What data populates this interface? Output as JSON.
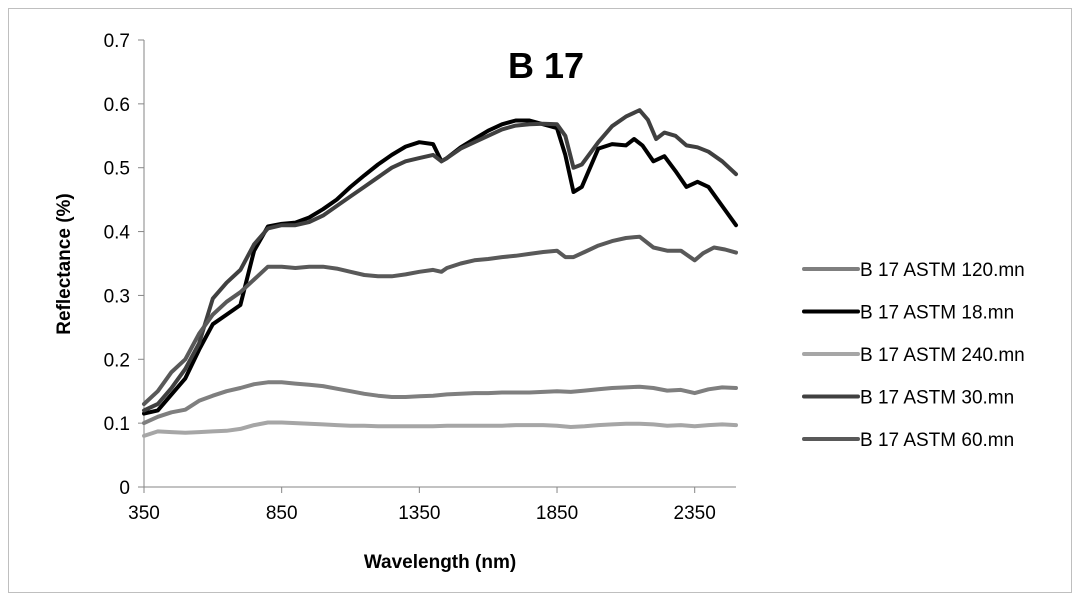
{
  "chart_data": {
    "type": "line",
    "title": "B 17",
    "xlabel": "Wavelength (nm)",
    "ylabel": "Reflectance (%)",
    "xlim": [
      350,
      2500
    ],
    "ylim": [
      0,
      0.7
    ],
    "x_ticks": [
      350,
      850,
      1350,
      1850,
      2350
    ],
    "y_ticks": [
      0,
      0.1,
      0.2,
      0.3,
      0.4,
      0.5,
      0.6,
      0.7
    ],
    "y_tick_labels": [
      "0",
      "0.1",
      "0.2",
      "0.3",
      "0.4",
      "0.5",
      "0.6",
      "0.7"
    ],
    "grid": false,
    "legend_position": "right",
    "series": [
      {
        "name": "B 17 ASTM 120.mn",
        "color": "#7f7f7f",
        "points": [
          [
            350,
            0.1
          ],
          [
            400,
            0.11
          ],
          [
            450,
            0.117
          ],
          [
            500,
            0.121
          ],
          [
            550,
            0.135
          ],
          [
            600,
            0.143
          ],
          [
            650,
            0.15
          ],
          [
            700,
            0.155
          ],
          [
            750,
            0.161
          ],
          [
            800,
            0.164
          ],
          [
            850,
            0.164
          ],
          [
            900,
            0.162
          ],
          [
            950,
            0.16
          ],
          [
            1000,
            0.158
          ],
          [
            1050,
            0.154
          ],
          [
            1100,
            0.15
          ],
          [
            1150,
            0.146
          ],
          [
            1200,
            0.143
          ],
          [
            1250,
            0.141
          ],
          [
            1300,
            0.141
          ],
          [
            1350,
            0.142
          ],
          [
            1400,
            0.143
          ],
          [
            1450,
            0.145
          ],
          [
            1500,
            0.146
          ],
          [
            1550,
            0.147
          ],
          [
            1600,
            0.147
          ],
          [
            1650,
            0.148
          ],
          [
            1700,
            0.148
          ],
          [
            1750,
            0.148
          ],
          [
            1800,
            0.149
          ],
          [
            1850,
            0.15
          ],
          [
            1900,
            0.149
          ],
          [
            1950,
            0.151
          ],
          [
            2000,
            0.153
          ],
          [
            2050,
            0.155
          ],
          [
            2100,
            0.156
          ],
          [
            2150,
            0.157
          ],
          [
            2200,
            0.155
          ],
          [
            2250,
            0.151
          ],
          [
            2300,
            0.152
          ],
          [
            2350,
            0.147
          ],
          [
            2400,
            0.153
          ],
          [
            2450,
            0.156
          ],
          [
            2500,
            0.155
          ]
        ]
      },
      {
        "name": "B 17 ASTM 18.mn",
        "color": "#000000",
        "points": [
          [
            350,
            0.115
          ],
          [
            400,
            0.12
          ],
          [
            450,
            0.145
          ],
          [
            500,
            0.17
          ],
          [
            550,
            0.215
          ],
          [
            600,
            0.255
          ],
          [
            650,
            0.27
          ],
          [
            700,
            0.285
          ],
          [
            750,
            0.37
          ],
          [
            800,
            0.408
          ],
          [
            850,
            0.412
          ],
          [
            900,
            0.414
          ],
          [
            950,
            0.422
          ],
          [
            1000,
            0.435
          ],
          [
            1050,
            0.45
          ],
          [
            1100,
            0.47
          ],
          [
            1150,
            0.488
          ],
          [
            1200,
            0.505
          ],
          [
            1250,
            0.52
          ],
          [
            1300,
            0.533
          ],
          [
            1350,
            0.54
          ],
          [
            1400,
            0.537
          ],
          [
            1430,
            0.51
          ],
          [
            1450,
            0.515
          ],
          [
            1500,
            0.532
          ],
          [
            1550,
            0.545
          ],
          [
            1600,
            0.558
          ],
          [
            1650,
            0.568
          ],
          [
            1700,
            0.574
          ],
          [
            1750,
            0.574
          ],
          [
            1800,
            0.568
          ],
          [
            1850,
            0.562
          ],
          [
            1880,
            0.52
          ],
          [
            1910,
            0.462
          ],
          [
            1940,
            0.47
          ],
          [
            2000,
            0.53
          ],
          [
            2050,
            0.537
          ],
          [
            2100,
            0.535
          ],
          [
            2130,
            0.545
          ],
          [
            2160,
            0.535
          ],
          [
            2200,
            0.51
          ],
          [
            2240,
            0.518
          ],
          [
            2280,
            0.495
          ],
          [
            2320,
            0.47
          ],
          [
            2360,
            0.478
          ],
          [
            2400,
            0.47
          ],
          [
            2450,
            0.44
          ],
          [
            2500,
            0.41
          ]
        ]
      },
      {
        "name": "B 17 ASTM 240.mn",
        "color": "#a6a6a6",
        "points": [
          [
            350,
            0.08
          ],
          [
            400,
            0.087
          ],
          [
            450,
            0.086
          ],
          [
            500,
            0.085
          ],
          [
            550,
            0.086
          ],
          [
            600,
            0.087
          ],
          [
            650,
            0.088
          ],
          [
            700,
            0.091
          ],
          [
            750,
            0.097
          ],
          [
            800,
            0.101
          ],
          [
            850,
            0.101
          ],
          [
            900,
            0.1
          ],
          [
            950,
            0.099
          ],
          [
            1000,
            0.098
          ],
          [
            1050,
            0.097
          ],
          [
            1100,
            0.096
          ],
          [
            1150,
            0.096
          ],
          [
            1200,
            0.095
          ],
          [
            1250,
            0.095
          ],
          [
            1300,
            0.095
          ],
          [
            1350,
            0.095
          ],
          [
            1400,
            0.095
          ],
          [
            1450,
            0.096
          ],
          [
            1500,
            0.096
          ],
          [
            1550,
            0.096
          ],
          [
            1600,
            0.096
          ],
          [
            1650,
            0.096
          ],
          [
            1700,
            0.097
          ],
          [
            1750,
            0.097
          ],
          [
            1800,
            0.097
          ],
          [
            1850,
            0.096
          ],
          [
            1900,
            0.094
          ],
          [
            1950,
            0.095
          ],
          [
            2000,
            0.097
          ],
          [
            2050,
            0.098
          ],
          [
            2100,
            0.099
          ],
          [
            2150,
            0.099
          ],
          [
            2200,
            0.098
          ],
          [
            2250,
            0.096
          ],
          [
            2300,
            0.097
          ],
          [
            2350,
            0.095
          ],
          [
            2400,
            0.097
          ],
          [
            2450,
            0.098
          ],
          [
            2500,
            0.097
          ]
        ]
      },
      {
        "name": "B 17 ASTM 30.mn",
        "color": "#404040",
        "points": [
          [
            350,
            0.12
          ],
          [
            400,
            0.13
          ],
          [
            450,
            0.155
          ],
          [
            500,
            0.185
          ],
          [
            550,
            0.225
          ],
          [
            600,
            0.295
          ],
          [
            650,
            0.32
          ],
          [
            700,
            0.34
          ],
          [
            750,
            0.38
          ],
          [
            800,
            0.405
          ],
          [
            850,
            0.41
          ],
          [
            900,
            0.41
          ],
          [
            950,
            0.415
          ],
          [
            1000,
            0.425
          ],
          [
            1050,
            0.44
          ],
          [
            1100,
            0.455
          ],
          [
            1150,
            0.47
          ],
          [
            1200,
            0.485
          ],
          [
            1250,
            0.5
          ],
          [
            1300,
            0.51
          ],
          [
            1350,
            0.515
          ],
          [
            1400,
            0.52
          ],
          [
            1430,
            0.51
          ],
          [
            1450,
            0.515
          ],
          [
            1500,
            0.53
          ],
          [
            1550,
            0.54
          ],
          [
            1600,
            0.55
          ],
          [
            1650,
            0.56
          ],
          [
            1700,
            0.566
          ],
          [
            1750,
            0.568
          ],
          [
            1800,
            0.569
          ],
          [
            1850,
            0.568
          ],
          [
            1880,
            0.55
          ],
          [
            1910,
            0.5
          ],
          [
            1940,
            0.505
          ],
          [
            2000,
            0.54
          ],
          [
            2050,
            0.565
          ],
          [
            2100,
            0.58
          ],
          [
            2150,
            0.59
          ],
          [
            2180,
            0.575
          ],
          [
            2210,
            0.545
          ],
          [
            2240,
            0.555
          ],
          [
            2280,
            0.55
          ],
          [
            2320,
            0.535
          ],
          [
            2360,
            0.532
          ],
          [
            2400,
            0.525
          ],
          [
            2450,
            0.51
          ],
          [
            2500,
            0.49
          ]
        ]
      },
      {
        "name": "B 17 ASTM 60.mn",
        "color": "#595959",
        "points": [
          [
            350,
            0.13
          ],
          [
            400,
            0.15
          ],
          [
            450,
            0.18
          ],
          [
            500,
            0.2
          ],
          [
            550,
            0.24
          ],
          [
            600,
            0.27
          ],
          [
            650,
            0.29
          ],
          [
            700,
            0.305
          ],
          [
            750,
            0.325
          ],
          [
            800,
            0.345
          ],
          [
            850,
            0.345
          ],
          [
            900,
            0.343
          ],
          [
            950,
            0.345
          ],
          [
            1000,
            0.345
          ],
          [
            1050,
            0.342
          ],
          [
            1100,
            0.337
          ],
          [
            1150,
            0.332
          ],
          [
            1200,
            0.33
          ],
          [
            1250,
            0.33
          ],
          [
            1300,
            0.333
          ],
          [
            1350,
            0.337
          ],
          [
            1400,
            0.34
          ],
          [
            1430,
            0.337
          ],
          [
            1450,
            0.343
          ],
          [
            1500,
            0.35
          ],
          [
            1550,
            0.355
          ],
          [
            1600,
            0.357
          ],
          [
            1650,
            0.36
          ],
          [
            1700,
            0.362
          ],
          [
            1750,
            0.365
          ],
          [
            1800,
            0.368
          ],
          [
            1850,
            0.37
          ],
          [
            1880,
            0.36
          ],
          [
            1910,
            0.36
          ],
          [
            1950,
            0.368
          ],
          [
            2000,
            0.378
          ],
          [
            2050,
            0.385
          ],
          [
            2100,
            0.39
          ],
          [
            2150,
            0.392
          ],
          [
            2200,
            0.375
          ],
          [
            2250,
            0.37
          ],
          [
            2300,
            0.37
          ],
          [
            2350,
            0.355
          ],
          [
            2380,
            0.366
          ],
          [
            2420,
            0.375
          ],
          [
            2460,
            0.372
          ],
          [
            2500,
            0.367
          ]
        ]
      }
    ]
  }
}
